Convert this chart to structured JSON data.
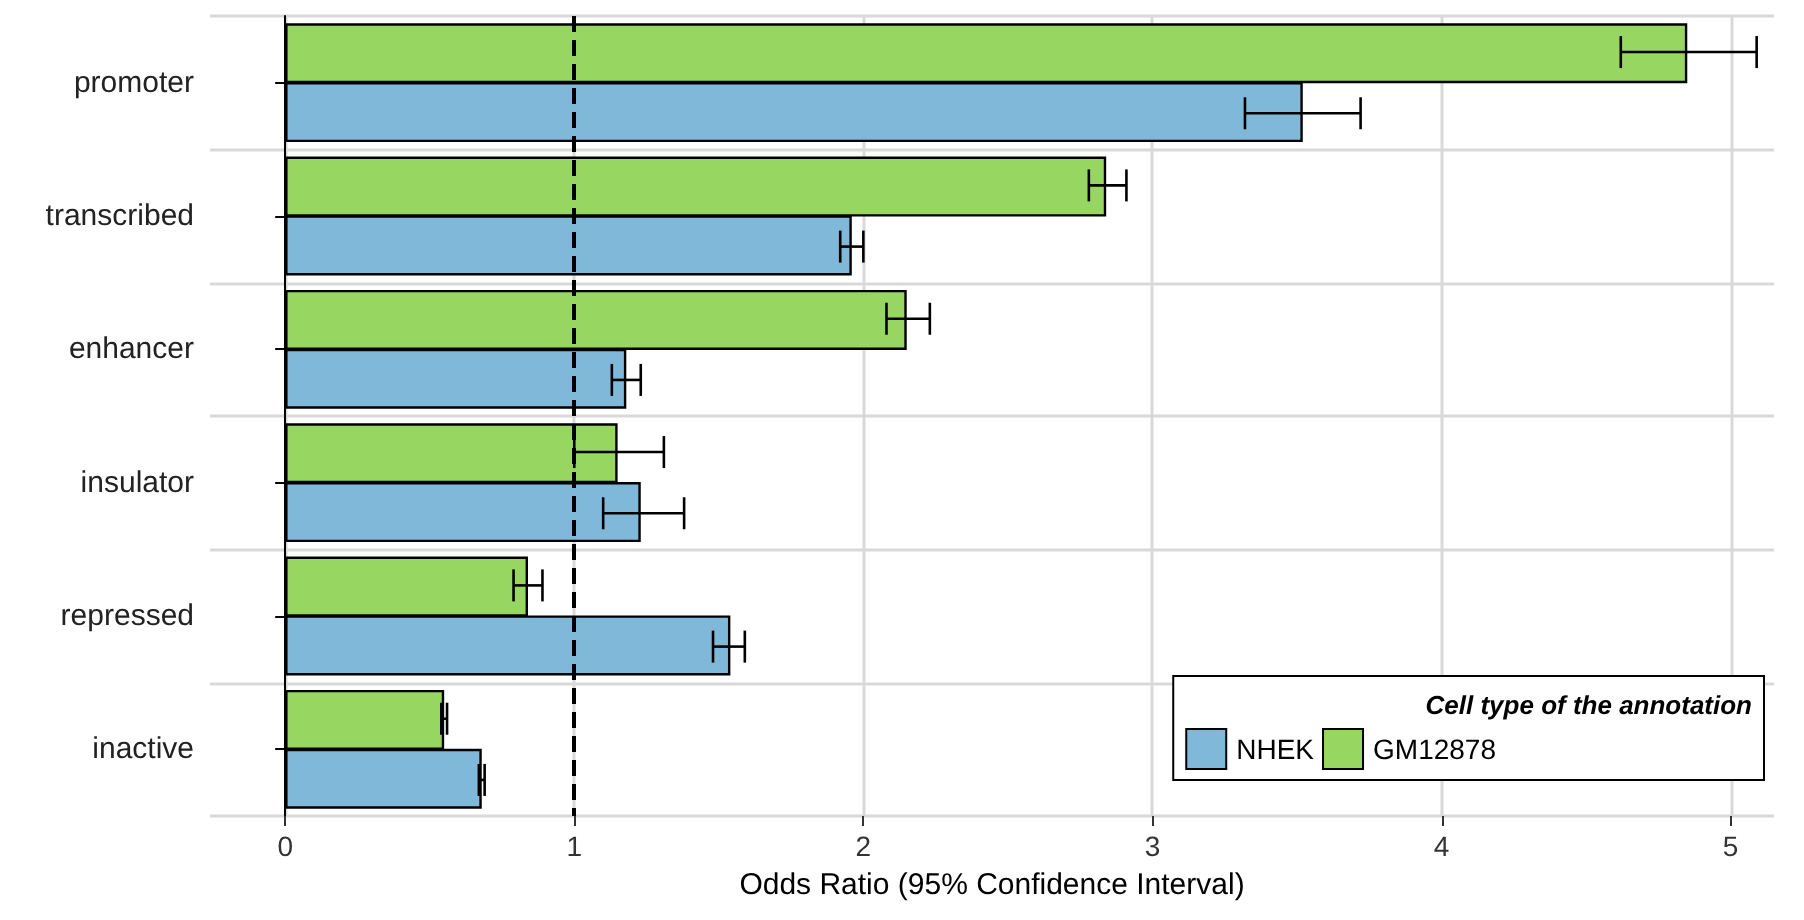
{
  "chart_data": {
    "type": "bar",
    "orientation": "horizontal",
    "categories": [
      "promoter",
      "transcribed",
      "enhancer",
      "insulator",
      "repressed",
      "inactive"
    ],
    "series": [
      {
        "name": "NHEK",
        "color": "#7fb8d8",
        "values": [
          3.52,
          1.96,
          1.18,
          1.23,
          1.54,
          0.68
        ],
        "errors": [
          [
            3.32,
            3.72
          ],
          [
            1.92,
            2.0
          ],
          [
            1.13,
            1.23
          ],
          [
            1.1,
            1.38
          ],
          [
            1.48,
            1.59
          ],
          [
            0.67,
            0.69
          ]
        ]
      },
      {
        "name": "GM12878",
        "color": "#98d662",
        "values": [
          4.85,
          2.84,
          2.15,
          1.15,
          0.84,
          0.55
        ],
        "errors": [
          [
            4.62,
            5.09
          ],
          [
            2.78,
            2.91
          ],
          [
            2.08,
            2.23
          ],
          [
            1.0,
            1.31
          ],
          [
            0.79,
            0.89
          ],
          [
            0.54,
            0.56
          ]
        ]
      }
    ],
    "xlabel": "Odds Ratio (95% Confidence Interval)",
    "legend_title": "Cell type of the annotation",
    "xlim": [
      -0.26,
      5.15
    ],
    "xticks": [
      0,
      1,
      2,
      3,
      4,
      5
    ],
    "ref_lines": [
      {
        "axis": "x",
        "value": 1,
        "line_style": "dashed",
        "color": "#000000"
      }
    ],
    "grid": true,
    "legend": "bottom right"
  }
}
